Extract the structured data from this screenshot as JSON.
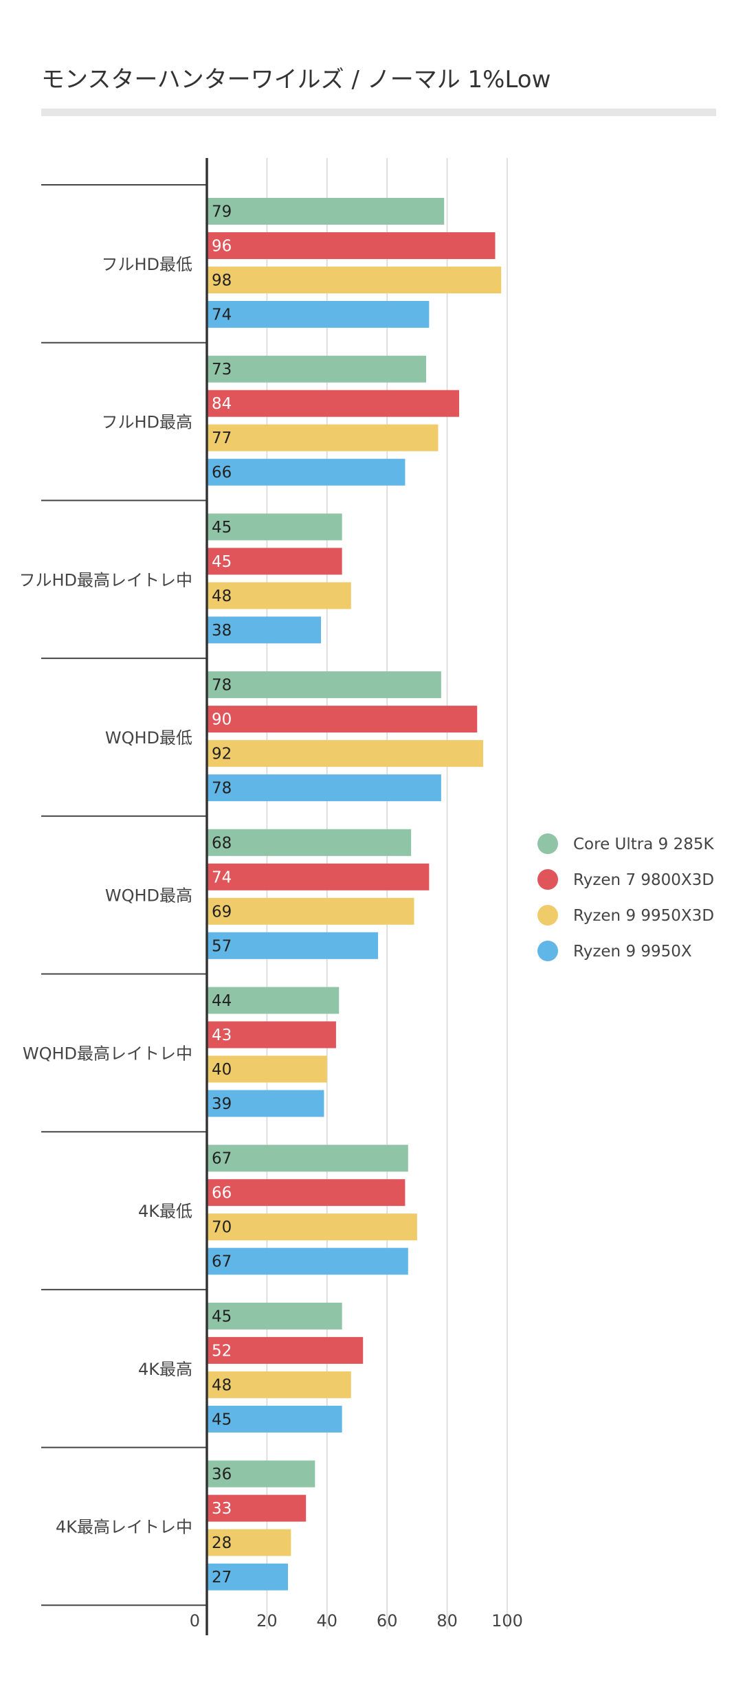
{
  "chart_data": {
    "type": "bar",
    "orientation": "horizontal",
    "title": "モンスターハンターワイルズ / ノーマル 1%Low",
    "categories": [
      "フルHD最低",
      "フルHD最高",
      "フルHD最高レイトレ中",
      "WQHD最低",
      "WQHD最高",
      "WQHD最高レイトレ中",
      "4K最低",
      "4K最高",
      "4K最高レイトレ中"
    ],
    "series": [
      {
        "name": "Core Ultra 9 285K",
        "color": "#8fc4a6",
        "label_color": "#222222",
        "values": [
          79,
          73,
          45,
          78,
          68,
          44,
          67,
          45,
          36
        ]
      },
      {
        "name": "Ryzen 7 9800X3D",
        "color": "#e0555a",
        "label_color": "#ffffff",
        "values": [
          96,
          84,
          45,
          90,
          74,
          43,
          66,
          52,
          33
        ]
      },
      {
        "name": "Ryzen 9 9950X3D",
        "color": "#f0cb6a",
        "label_color": "#222222",
        "values": [
          98,
          77,
          48,
          92,
          69,
          40,
          70,
          48,
          28
        ]
      },
      {
        "name": "Ryzen 9 9950X",
        "color": "#60b6e6",
        "label_color": "#222222",
        "values": [
          74,
          66,
          38,
          78,
          57,
          39,
          67,
          45,
          27
        ]
      }
    ],
    "xlim": [
      0,
      100
    ],
    "xticks": [
      0,
      20,
      40,
      60,
      80,
      100
    ],
    "grid": true,
    "legend_position": "right"
  }
}
